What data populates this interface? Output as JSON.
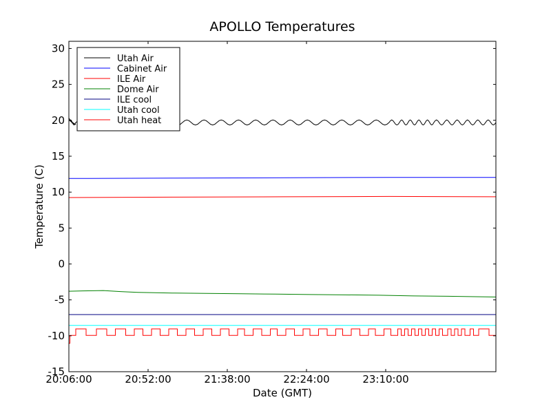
{
  "chart_data": {
    "type": "line",
    "title": "APOLLO Temperatures",
    "xlabel": "Date (GMT)",
    "ylabel": "Temperature (C)",
    "xlim": [
      0,
      248
    ],
    "ylim": [
      -15,
      31
    ],
    "x_unit": "minutes since 20:06:00",
    "xticks": [
      {
        "value": 0,
        "label": "20:06:00"
      },
      {
        "value": 46,
        "label": "20:52:00"
      },
      {
        "value": 92,
        "label": "21:38:00"
      },
      {
        "value": 138,
        "label": "22:24:00"
      },
      {
        "value": 184,
        "label": "23:10:00"
      }
    ],
    "yticks": [
      {
        "value": -15,
        "label": "-15"
      },
      {
        "value": -10,
        "label": "-10"
      },
      {
        "value": -5,
        "label": "-5"
      },
      {
        "value": 0,
        "label": "0"
      },
      {
        "value": 5,
        "label": "5"
      },
      {
        "value": 10,
        "label": "10"
      },
      {
        "value": 15,
        "label": "15"
      },
      {
        "value": 20,
        "label": "20"
      },
      {
        "value": 25,
        "label": "25"
      },
      {
        "value": 30,
        "label": "30"
      }
    ],
    "legend_position": "top-left",
    "series": [
      {
        "name": "Utah Air",
        "color": "#000000",
        "kind": "oscillating",
        "base": 19.7,
        "amplitude": 0.35,
        "cycles": [
          {
            "start": 0,
            "end": 4
          },
          {
            "start": 4,
            "end": 16
          },
          {
            "start": 16,
            "end": 26
          },
          {
            "start": 26,
            "end": 36
          },
          {
            "start": 36,
            "end": 46
          },
          {
            "start": 46,
            "end": 56
          },
          {
            "start": 56,
            "end": 66
          },
          {
            "start": 66,
            "end": 76
          },
          {
            "start": 76,
            "end": 86
          },
          {
            "start": 86,
            "end": 96
          },
          {
            "start": 96,
            "end": 106
          },
          {
            "start": 106,
            "end": 116
          },
          {
            "start": 116,
            "end": 126
          },
          {
            "start": 126,
            "end": 136
          },
          {
            "start": 136,
            "end": 146
          },
          {
            "start": 146,
            "end": 156
          },
          {
            "start": 156,
            "end": 166
          },
          {
            "start": 166,
            "end": 176
          },
          {
            "start": 176,
            "end": 186
          },
          {
            "start": 186,
            "end": 192
          },
          {
            "start": 192,
            "end": 197
          },
          {
            "start": 197,
            "end": 202
          },
          {
            "start": 202,
            "end": 207
          },
          {
            "start": 207,
            "end": 212
          },
          {
            "start": 212,
            "end": 218
          },
          {
            "start": 218,
            "end": 224
          },
          {
            "start": 224,
            "end": 230
          },
          {
            "start": 230,
            "end": 236
          },
          {
            "start": 236,
            "end": 242
          },
          {
            "start": 242,
            "end": 248
          }
        ],
        "points": [
          [
            0,
            20.3
          ],
          [
            2,
            19.6
          ],
          [
            4,
            19.4
          ]
        ]
      },
      {
        "name": "Cabinet Air",
        "color": "#0000ff",
        "points": [
          [
            0,
            11.9
          ],
          [
            60,
            11.95
          ],
          [
            124,
            12.0
          ],
          [
            186,
            12.05
          ],
          [
            248,
            12.05
          ]
        ]
      },
      {
        "name": "ILE Air",
        "color": "#ff0000",
        "points": [
          [
            0,
            9.25
          ],
          [
            60,
            9.3
          ],
          [
            124,
            9.35
          ],
          [
            186,
            9.4
          ],
          [
            248,
            9.35
          ]
        ]
      },
      {
        "name": "Dome Air",
        "color": "#008000",
        "points": [
          [
            0,
            -3.8
          ],
          [
            8,
            -3.75
          ],
          [
            20,
            -3.7
          ],
          [
            30,
            -3.85
          ],
          [
            40,
            -3.95
          ],
          [
            60,
            -4.05
          ],
          [
            80,
            -4.1
          ],
          [
            100,
            -4.15
          ],
          [
            120,
            -4.2
          ],
          [
            140,
            -4.25
          ],
          [
            160,
            -4.3
          ],
          [
            180,
            -4.35
          ],
          [
            200,
            -4.45
          ],
          [
            220,
            -4.5
          ],
          [
            248,
            -4.6
          ]
        ]
      },
      {
        "name": "ILE cool",
        "color": "#000080",
        "points": [
          [
            0,
            -7.05
          ],
          [
            248,
            -7.05
          ]
        ]
      },
      {
        "name": "Utah cool",
        "color": "#00ffff",
        "points": [
          [
            0,
            -8.55
          ],
          [
            248,
            -8.55
          ]
        ]
      },
      {
        "name": "Utah heat",
        "color": "#ff0000",
        "kind": "step",
        "high": -9.05,
        "low": -9.95,
        "start_points": [
          [
            0,
            -11.05
          ],
          [
            0.6,
            -11.05
          ],
          [
            0.6,
            -9.95
          ],
          [
            4,
            -9.95
          ]
        ],
        "high_intervals": [
          [
            4,
            10
          ],
          [
            16,
            22
          ],
          [
            27,
            33
          ],
          [
            38,
            43
          ],
          [
            48,
            53
          ],
          [
            58,
            63
          ],
          [
            68,
            73
          ],
          [
            78,
            83
          ],
          [
            88,
            93
          ],
          [
            98,
            102
          ],
          [
            107,
            112
          ],
          [
            117,
            121
          ],
          [
            126,
            131
          ],
          [
            136,
            140
          ],
          [
            145,
            150
          ],
          [
            155,
            159
          ],
          [
            164,
            169
          ],
          [
            174,
            178
          ],
          [
            183,
            187
          ],
          [
            191,
            193
          ],
          [
            195,
            197
          ],
          [
            199,
            201
          ],
          [
            203,
            205
          ],
          [
            207,
            209
          ],
          [
            211,
            213
          ],
          [
            215,
            217
          ],
          [
            220,
            222
          ],
          [
            224,
            226
          ],
          [
            228,
            230
          ],
          [
            233,
            235
          ],
          [
            238,
            244
          ]
        ]
      }
    ]
  }
}
